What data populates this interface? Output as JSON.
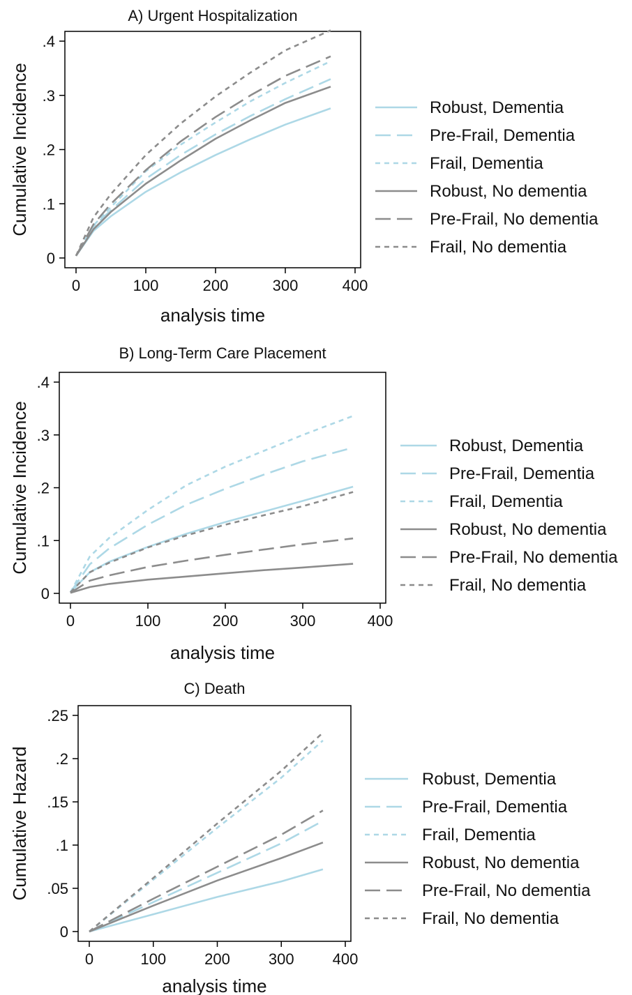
{
  "chart_data": [
    {
      "type": "line",
      "title": "A) Urgent Hospitalization",
      "xlabel": "analysis time",
      "ylabel": "Cumulative Incidence",
      "xlim": [
        0,
        400
      ],
      "ylim": [
        0,
        0.4
      ],
      "xticks": [
        0,
        100,
        200,
        300,
        400
      ],
      "xtick_labels": [
        "0",
        "100",
        "200",
        "300",
        "400"
      ],
      "yticks": [
        0,
        0.1,
        0.2,
        0.3,
        0.4
      ],
      "ytick_labels": [
        "0",
        ".1",
        ".2",
        ".3",
        ".4"
      ],
      "legend_position": "right",
      "x": [
        0,
        25,
        50,
        100,
        150,
        200,
        250,
        300,
        365
      ],
      "series": [
        {
          "name": "Robust, Dementia",
          "color": "#add8e6",
          "dash": "solid",
          "values": [
            0.004,
            0.05,
            0.077,
            0.122,
            0.158,
            0.19,
            0.219,
            0.246,
            0.276
          ]
        },
        {
          "name": "Pre-Frail, Dementia",
          "color": "#add8e6",
          "dash": "long",
          "values": [
            0.004,
            0.058,
            0.088,
            0.146,
            0.19,
            0.228,
            0.262,
            0.293,
            0.33
          ]
        },
        {
          "name": "Frail, Dementia",
          "color": "#add8e6",
          "dash": "short",
          "values": [
            0.004,
            0.06,
            0.094,
            0.16,
            0.209,
            0.25,
            0.289,
            0.323,
            0.363
          ]
        },
        {
          "name": "Robust, No dementia",
          "color": "#8c8c8c",
          "dash": "solid",
          "values": [
            0.004,
            0.053,
            0.085,
            0.137,
            0.18,
            0.22,
            0.254,
            0.286,
            0.316
          ]
        },
        {
          "name": "Pre-Frail, No dementia",
          "color": "#8c8c8c",
          "dash": "long",
          "values": [
            0.004,
            0.062,
            0.1,
            0.162,
            0.215,
            0.26,
            0.3,
            0.336,
            0.372
          ]
        },
        {
          "name": "Frail, No dementia",
          "color": "#8c8c8c",
          "dash": "short",
          "values": [
            0.004,
            0.075,
            0.118,
            0.19,
            0.248,
            0.298,
            0.342,
            0.383,
            0.42
          ]
        }
      ]
    },
    {
      "type": "line",
      "title": "B) Long-Term Care Placement",
      "xlabel": "analysis time",
      "ylabel": "Cumulative Incidence",
      "xlim": [
        0,
        400
      ],
      "ylim": [
        0,
        0.4
      ],
      "xticks": [
        0,
        100,
        200,
        300,
        400
      ],
      "xtick_labels": [
        "0",
        "100",
        "200",
        "300",
        "400"
      ],
      "yticks": [
        0,
        0.1,
        0.2,
        0.3,
        0.4
      ],
      "ytick_labels": [
        "0",
        ".1",
        ".2",
        ".3",
        ".4"
      ],
      "legend_position": "right",
      "x": [
        0,
        25,
        50,
        100,
        150,
        200,
        250,
        300,
        365
      ],
      "series": [
        {
          "name": "Robust, Dementia",
          "color": "#add8e6",
          "dash": "solid",
          "values": [
            0.002,
            0.04,
            0.06,
            0.088,
            0.113,
            0.135,
            0.155,
            0.175,
            0.202
          ]
        },
        {
          "name": "Pre-Frail, Dementia",
          "color": "#add8e6",
          "dash": "long",
          "values": [
            0.002,
            0.055,
            0.085,
            0.13,
            0.168,
            0.198,
            0.225,
            0.25,
            0.276
          ]
        },
        {
          "name": "Frail, Dementia",
          "color": "#add8e6",
          "dash": "short",
          "values": [
            0.002,
            0.07,
            0.105,
            0.158,
            0.205,
            0.24,
            0.27,
            0.3,
            0.336
          ]
        },
        {
          "name": "Robust, No dementia",
          "color": "#8c8c8c",
          "dash": "solid",
          "values": [
            0.001,
            0.012,
            0.018,
            0.026,
            0.032,
            0.038,
            0.044,
            0.049,
            0.056
          ]
        },
        {
          "name": "Pre-Frail, No dementia",
          "color": "#8c8c8c",
          "dash": "long",
          "values": [
            0.001,
            0.024,
            0.034,
            0.05,
            0.062,
            0.073,
            0.083,
            0.093,
            0.104
          ]
        },
        {
          "name": "Frail, No dementia",
          "color": "#8c8c8c",
          "dash": "short",
          "values": [
            0.002,
            0.04,
            0.058,
            0.087,
            0.11,
            0.13,
            0.148,
            0.165,
            0.192
          ]
        }
      ]
    },
    {
      "type": "line",
      "title": "C) Death",
      "xlabel": "analysis time",
      "ylabel": "Cumulative Hazard",
      "xlim": [
        0,
        400
      ],
      "ylim": [
        0,
        0.25
      ],
      "xticks": [
        0,
        100,
        200,
        300,
        400
      ],
      "xtick_labels": [
        "0",
        "100",
        "200",
        "300",
        "400"
      ],
      "yticks": [
        0,
        0.05,
        0.1,
        0.15,
        0.2,
        0.25
      ],
      "ytick_labels": [
        "0",
        ".05",
        ".1",
        ".15",
        ".2",
        ".25"
      ],
      "legend_position": "right",
      "x": [
        0,
        100,
        200,
        300,
        365
      ],
      "series": [
        {
          "name": "Robust, Dementia",
          "color": "#add8e6",
          "dash": "solid",
          "values": [
            0,
            0.02,
            0.04,
            0.058,
            0.072
          ]
        },
        {
          "name": "Pre-Frail, Dementia",
          "color": "#add8e6",
          "dash": "long",
          "values": [
            0,
            0.034,
            0.068,
            0.102,
            0.128
          ]
        },
        {
          "name": "Frail, Dementia",
          "color": "#add8e6",
          "dash": "short",
          "values": [
            0,
            0.06,
            0.12,
            0.178,
            0.221
          ]
        },
        {
          "name": "Robust, No dementia",
          "color": "#8c8c8c",
          "dash": "solid",
          "values": [
            0,
            0.03,
            0.059,
            0.085,
            0.103
          ]
        },
        {
          "name": "Pre-Frail, No dementia",
          "color": "#8c8c8c",
          "dash": "long",
          "values": [
            0,
            0.038,
            0.075,
            0.112,
            0.14
          ]
        },
        {
          "name": "Frail, No dementia",
          "color": "#8c8c8c",
          "dash": "short",
          "values": [
            0,
            0.062,
            0.125,
            0.186,
            0.23
          ]
        }
      ]
    }
  ]
}
